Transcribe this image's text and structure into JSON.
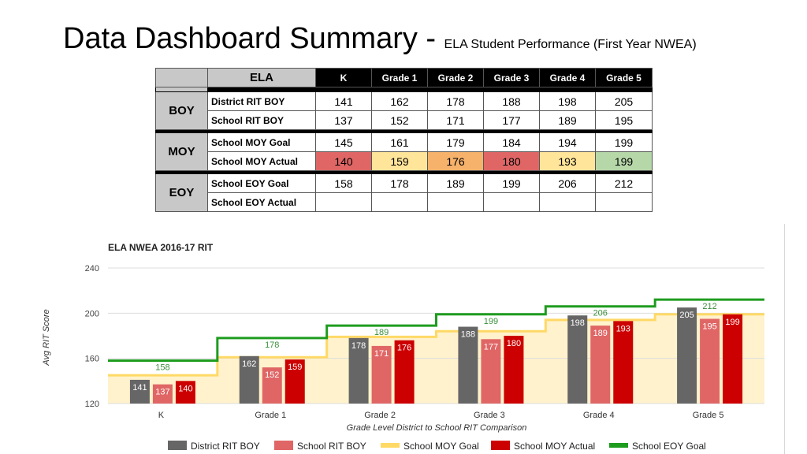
{
  "title": {
    "main": "Data Dashboard Summary -",
    "sub": "ELA Student Performance (First Year NWEA)"
  },
  "table": {
    "corner": "ELA",
    "grades": [
      "K",
      "Grade 1",
      "Grade 2",
      "Grade 3",
      "Grade 4",
      "Grade 5"
    ],
    "groups": [
      {
        "period": "BOY",
        "rows": [
          {
            "label": "District  RIT BOY",
            "values": [
              "141",
              "162",
              "178",
              "188",
              "198",
              "205"
            ],
            "colors": [
              "",
              "",
              "",
              "",
              "",
              ""
            ]
          },
          {
            "label": "School RIT BOY",
            "values": [
              "137",
              "152",
              "171",
              "177",
              "189",
              "195"
            ],
            "colors": [
              "",
              "",
              "",
              "",
              "",
              ""
            ]
          }
        ]
      },
      {
        "period": "MOY",
        "rows": [
          {
            "label": "School MOY Goal",
            "values": [
              "145",
              "161",
              "179",
              "184",
              "194",
              "199"
            ],
            "colors": [
              "",
              "",
              "",
              "",
              "",
              ""
            ]
          },
          {
            "label": "School MOY Actual",
            "values": [
              "140",
              "159",
              "176",
              "180",
              "193",
              "199"
            ],
            "colors": [
              "#e06666",
              "#ffe599",
              "#f6b26b",
              "#e06666",
              "#ffe599",
              "#b6d7a8"
            ]
          }
        ]
      },
      {
        "period": "EOY",
        "rows": [
          {
            "label": "School EOY Goal",
            "values": [
              "158",
              "178",
              "189",
              "199",
              "206",
              "212"
            ],
            "colors": [
              "",
              "",
              "",
              "",
              "",
              ""
            ]
          },
          {
            "label": "School EOY Actual",
            "values": [
              "",
              "",
              "",
              "",
              "",
              ""
            ],
            "colors": [
              "",
              "",
              "",
              "",
              "",
              ""
            ]
          }
        ]
      }
    ]
  },
  "chart_data": {
    "type": "bar",
    "title": "ELA NWEA 2016-17 RIT",
    "xlabel": "Grade Level District to School RIT Comparison",
    "ylabel": "Avg RIT Score",
    "ylim": [
      120,
      240
    ],
    "yticks": [
      120,
      160,
      200,
      240
    ],
    "grid": true,
    "legend_position": "bottom",
    "categories": [
      "K",
      "Grade 1",
      "Grade 2",
      "Grade 3",
      "Grade 4",
      "Grade 5"
    ],
    "series": [
      {
        "name": "District RIT BOY",
        "kind": "bar",
        "color": "#666666",
        "values": [
          141,
          162,
          178,
          188,
          198,
          205
        ]
      },
      {
        "name": "School RIT BOY",
        "kind": "bar",
        "color": "#e06666",
        "values": [
          137,
          152,
          171,
          177,
          189,
          195
        ]
      },
      {
        "name": "School MOY Goal",
        "kind": "step-area",
        "color": "#ffd966",
        "values": [
          145,
          161,
          179,
          184,
          194,
          199
        ]
      },
      {
        "name": "School MOY Actual",
        "kind": "bar",
        "color": "#cc0000",
        "values": [
          140,
          159,
          176,
          180,
          193,
          199
        ]
      },
      {
        "name": "School EOY Goal",
        "kind": "step-line",
        "color": "#1e9c1e",
        "values": [
          158,
          178,
          189,
          199,
          206,
          212
        ]
      }
    ]
  }
}
